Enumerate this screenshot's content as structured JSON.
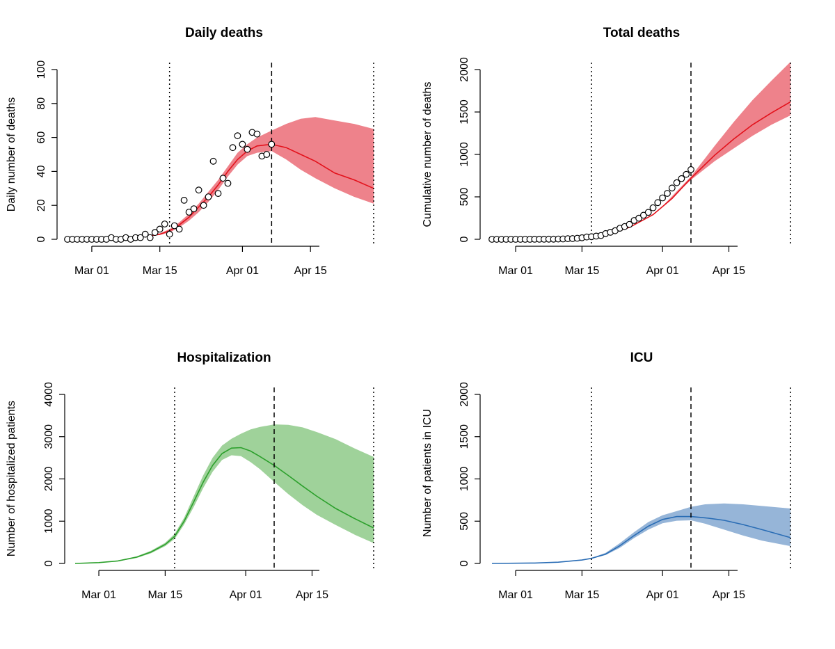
{
  "chart_data": [
    {
      "type": "line",
      "title": "Daily deaths",
      "ylabel": "Daily number of deaths",
      "xlabel": "",
      "ylim": [
        0,
        100
      ],
      "yticks": [
        0,
        20,
        40,
        60,
        80,
        100
      ],
      "xticks": [
        {
          "date": "2020-03-01",
          "label": "Mar 01"
        },
        {
          "date": "2020-03-15",
          "label": "Mar 15"
        },
        {
          "date": "2020-04-01",
          "label": "Apr 01"
        },
        {
          "date": "2020-04-15",
          "label": "Apr 15"
        }
      ],
      "xlim": [
        "2020-02-25",
        "2020-04-28"
      ],
      "vlines": [
        {
          "date": "2020-03-17",
          "style": "dotted"
        },
        {
          "date": "2020-04-07",
          "style": "dashed"
        },
        {
          "date": "2020-04-28",
          "style": "dotted"
        }
      ],
      "colors": {
        "line": "#e3111b",
        "band": "#ee828b"
      },
      "series": [
        {
          "kind": "observed",
          "x": [
            "2020-02-25",
            "2020-02-26",
            "2020-02-27",
            "2020-02-28",
            "2020-02-29",
            "2020-03-01",
            "2020-03-02",
            "2020-03-03",
            "2020-03-04",
            "2020-03-05",
            "2020-03-06",
            "2020-03-07",
            "2020-03-08",
            "2020-03-09",
            "2020-03-10",
            "2020-03-11",
            "2020-03-12",
            "2020-03-13",
            "2020-03-14",
            "2020-03-15",
            "2020-03-16",
            "2020-03-17",
            "2020-03-18",
            "2020-03-19",
            "2020-03-20",
            "2020-03-21",
            "2020-03-22",
            "2020-03-23",
            "2020-03-24",
            "2020-03-25",
            "2020-03-26",
            "2020-03-27",
            "2020-03-28",
            "2020-03-29",
            "2020-03-30",
            "2020-03-31",
            "2020-04-01",
            "2020-04-02",
            "2020-04-03",
            "2020-04-04",
            "2020-04-05",
            "2020-04-06",
            "2020-04-07"
          ],
          "y": [
            0,
            0,
            0,
            0,
            0,
            0,
            0,
            0,
            0,
            1,
            0,
            0,
            1,
            0,
            1,
            1,
            3,
            1,
            4,
            6,
            9,
            3,
            8,
            6,
            23,
            16,
            18,
            29,
            20,
            25,
            46,
            27,
            36,
            33,
            54,
            61,
            56,
            53,
            63,
            62,
            49,
            50,
            56
          ]
        },
        {
          "kind": "fitted",
          "x": [
            "2020-02-25",
            "2020-03-01",
            "2020-03-05",
            "2020-03-10",
            "2020-03-13",
            "2020-03-15",
            "2020-03-17",
            "2020-03-19",
            "2020-03-21",
            "2020-03-23",
            "2020-03-25",
            "2020-03-27",
            "2020-03-29",
            "2020-03-31",
            "2020-04-02",
            "2020-04-04",
            "2020-04-07",
            "2020-04-10",
            "2020-04-13",
            "2020-04-16",
            "2020-04-20",
            "2020-04-24",
            "2020-04-28"
          ],
          "y": [
            0,
            0,
            0.2,
            1,
            2,
            3,
            5,
            8.5,
            13,
            19,
            25,
            32,
            40,
            47,
            52,
            55,
            56,
            54,
            50,
            46,
            39,
            35,
            30
          ]
        },
        {
          "kind": "band_upper",
          "x": [
            "2020-03-10",
            "2020-03-15",
            "2020-03-17",
            "2020-03-19",
            "2020-03-21",
            "2020-03-23",
            "2020-03-25",
            "2020-03-27",
            "2020-03-29",
            "2020-03-31",
            "2020-04-02",
            "2020-04-04",
            "2020-04-07",
            "2020-04-10",
            "2020-04-13",
            "2020-04-16",
            "2020-04-20",
            "2020-04-24",
            "2020-04-28"
          ],
          "y": [
            1,
            3.5,
            6,
            10,
            15,
            21,
            28,
            35,
            43,
            51,
            56,
            60,
            64,
            68,
            71,
            72,
            70,
            68,
            65
          ]
        },
        {
          "kind": "band_lower",
          "x": [
            "2020-03-10",
            "2020-03-15",
            "2020-03-17",
            "2020-03-19",
            "2020-03-21",
            "2020-03-23",
            "2020-03-25",
            "2020-03-27",
            "2020-03-29",
            "2020-03-31",
            "2020-04-02",
            "2020-04-04",
            "2020-04-07",
            "2020-04-10",
            "2020-04-13",
            "2020-04-16",
            "2020-04-20",
            "2020-04-24",
            "2020-04-28"
          ],
          "y": [
            1,
            2.5,
            4,
            7,
            11,
            16,
            22,
            29,
            37,
            44,
            49,
            51,
            52,
            47,
            41,
            36,
            30,
            25,
            21
          ]
        }
      ]
    },
    {
      "type": "line",
      "title": "Total deaths",
      "ylabel": "Cumulative number of deaths",
      "xlabel": "",
      "ylim": [
        0,
        2000
      ],
      "yticks": [
        0,
        500,
        1000,
        1500,
        2000
      ],
      "xticks": [
        {
          "date": "2020-03-01",
          "label": "Mar 01"
        },
        {
          "date": "2020-03-15",
          "label": "Mar 15"
        },
        {
          "date": "2020-04-01",
          "label": "Apr 01"
        },
        {
          "date": "2020-04-15",
          "label": "Apr 15"
        }
      ],
      "xlim": [
        "2020-02-25",
        "2020-04-28"
      ],
      "vlines": [
        {
          "date": "2020-03-17",
          "style": "dotted"
        },
        {
          "date": "2020-04-07",
          "style": "dashed"
        },
        {
          "date": "2020-04-28",
          "style": "dotted"
        }
      ],
      "colors": {
        "line": "#e3111b",
        "band": "#ee828b"
      },
      "series": [
        {
          "kind": "observed",
          "x": [
            "2020-02-25",
            "2020-02-26",
            "2020-02-27",
            "2020-02-28",
            "2020-02-29",
            "2020-03-01",
            "2020-03-02",
            "2020-03-03",
            "2020-03-04",
            "2020-03-05",
            "2020-03-06",
            "2020-03-07",
            "2020-03-08",
            "2020-03-09",
            "2020-03-10",
            "2020-03-11",
            "2020-03-12",
            "2020-03-13",
            "2020-03-14",
            "2020-03-15",
            "2020-03-16",
            "2020-03-17",
            "2020-03-18",
            "2020-03-19",
            "2020-03-20",
            "2020-03-21",
            "2020-03-22",
            "2020-03-23",
            "2020-03-24",
            "2020-03-25",
            "2020-03-26",
            "2020-03-27",
            "2020-03-28",
            "2020-03-29",
            "2020-03-30",
            "2020-03-31",
            "2020-04-01",
            "2020-04-02",
            "2020-04-03",
            "2020-04-04",
            "2020-04-05",
            "2020-04-06",
            "2020-04-07"
          ],
          "y": [
            0,
            0,
            0,
            0,
            0,
            0,
            0,
            0,
            0,
            1,
            1,
            1,
            2,
            2,
            3,
            4,
            7,
            8,
            12,
            18,
            27,
            30,
            38,
            44,
            67,
            83,
            101,
            130,
            150,
            175,
            221,
            248,
            284,
            317,
            371,
            432,
            488,
            541,
            604,
            666,
            715,
            765,
            821
          ]
        },
        {
          "kind": "fitted",
          "x": [
            "2020-02-25",
            "2020-03-05",
            "2020-03-15",
            "2020-03-20",
            "2020-03-25",
            "2020-03-30",
            "2020-04-03",
            "2020-04-07",
            "2020-04-12",
            "2020-04-16",
            "2020-04-20",
            "2020-04-24",
            "2020-04-28"
          ],
          "y": [
            0,
            2,
            15,
            55,
            140,
            290,
            480,
            720,
            990,
            1180,
            1350,
            1490,
            1620
          ]
        },
        {
          "kind": "band_upper",
          "x": [
            "2020-04-01",
            "2020-04-07",
            "2020-04-12",
            "2020-04-16",
            "2020-04-20",
            "2020-04-24",
            "2020-04-28"
          ],
          "y": [
            390,
            740,
            1100,
            1380,
            1640,
            1870,
            2090
          ]
        },
        {
          "kind": "band_lower",
          "x": [
            "2020-04-01",
            "2020-04-07",
            "2020-04-12",
            "2020-04-16",
            "2020-04-20",
            "2020-04-24",
            "2020-04-28"
          ],
          "y": [
            380,
            700,
            920,
            1070,
            1220,
            1350,
            1460
          ]
        }
      ]
    },
    {
      "type": "line",
      "title": "Hospitalization",
      "ylabel": "Number of hospitalized patients",
      "xlabel": "",
      "ylim": [
        0,
        4000
      ],
      "yticks": [
        0,
        1000,
        2000,
        3000,
        4000
      ],
      "xticks": [
        {
          "date": "2020-03-01",
          "label": "Mar 01"
        },
        {
          "date": "2020-03-15",
          "label": "Mar 15"
        },
        {
          "date": "2020-04-01",
          "label": "Apr 01"
        },
        {
          "date": "2020-04-15",
          "label": "Apr 15"
        }
      ],
      "xlim": [
        "2020-02-25",
        "2020-04-28"
      ],
      "vlines": [
        {
          "date": "2020-03-17",
          "style": "dotted"
        },
        {
          "date": "2020-04-07",
          "style": "dashed"
        },
        {
          "date": "2020-04-28",
          "style": "dotted"
        }
      ],
      "colors": {
        "line": "#2ca02c",
        "band": "#9fd29a"
      },
      "series": [
        {
          "kind": "fitted",
          "x": [
            "2020-02-25",
            "2020-03-01",
            "2020-03-05",
            "2020-03-09",
            "2020-03-12",
            "2020-03-15",
            "2020-03-17",
            "2020-03-19",
            "2020-03-21",
            "2020-03-23",
            "2020-03-25",
            "2020-03-27",
            "2020-03-29",
            "2020-03-31",
            "2020-04-02",
            "2020-04-04",
            "2020-04-07",
            "2020-04-10",
            "2020-04-13",
            "2020-04-16",
            "2020-04-20",
            "2020-04-24",
            "2020-04-28"
          ],
          "y": [
            0,
            20,
            60,
            150,
            270,
            450,
            640,
            1000,
            1450,
            1920,
            2320,
            2600,
            2730,
            2740,
            2660,
            2530,
            2320,
            2080,
            1830,
            1590,
            1300,
            1060,
            840
          ]
        },
        {
          "kind": "band_upper",
          "x": [
            "2020-03-05",
            "2020-03-09",
            "2020-03-12",
            "2020-03-15",
            "2020-03-17",
            "2020-03-19",
            "2020-03-21",
            "2020-03-23",
            "2020-03-25",
            "2020-03-27",
            "2020-03-29",
            "2020-03-31",
            "2020-04-02",
            "2020-04-04",
            "2020-04-07",
            "2020-04-10",
            "2020-04-13",
            "2020-04-16",
            "2020-04-20",
            "2020-04-24",
            "2020-04-28"
          ],
          "y": [
            70,
            170,
            300,
            490,
            700,
            1080,
            1580,
            2080,
            2500,
            2790,
            2950,
            3070,
            3170,
            3230,
            3290,
            3280,
            3220,
            3110,
            2940,
            2720,
            2520
          ]
        },
        {
          "kind": "band_lower",
          "x": [
            "2020-03-05",
            "2020-03-09",
            "2020-03-12",
            "2020-03-15",
            "2020-03-17",
            "2020-03-19",
            "2020-03-21",
            "2020-03-23",
            "2020-03-25",
            "2020-03-27",
            "2020-03-29",
            "2020-03-31",
            "2020-04-02",
            "2020-04-04",
            "2020-04-07",
            "2020-04-10",
            "2020-04-13",
            "2020-04-16",
            "2020-04-20",
            "2020-04-24",
            "2020-04-28"
          ],
          "y": [
            50,
            130,
            240,
            410,
            580,
            920,
            1330,
            1780,
            2170,
            2450,
            2560,
            2540,
            2400,
            2230,
            1930,
            1640,
            1380,
            1150,
            910,
            680,
            480
          ]
        }
      ]
    },
    {
      "type": "line",
      "title": "ICU",
      "ylabel": "Number of patients in ICU",
      "xlabel": "",
      "ylim": [
        0,
        2000
      ],
      "yticks": [
        0,
        500,
        1000,
        1500,
        2000
      ],
      "xticks": [
        {
          "date": "2020-03-01",
          "label": "Mar 01"
        },
        {
          "date": "2020-03-15",
          "label": "Mar 15"
        },
        {
          "date": "2020-04-01",
          "label": "Apr 01"
        },
        {
          "date": "2020-04-15",
          "label": "Apr 15"
        }
      ],
      "xlim": [
        "2020-02-25",
        "2020-04-28"
      ],
      "vlines": [
        {
          "date": "2020-03-17",
          "style": "dotted"
        },
        {
          "date": "2020-04-07",
          "style": "dashed"
        },
        {
          "date": "2020-04-28",
          "style": "dotted"
        }
      ],
      "colors": {
        "line": "#2a6db5",
        "band": "#96b5d8"
      },
      "series": [
        {
          "kind": "fitted",
          "x": [
            "2020-02-25",
            "2020-03-05",
            "2020-03-10",
            "2020-03-15",
            "2020-03-17",
            "2020-03-20",
            "2020-03-23",
            "2020-03-26",
            "2020-03-29",
            "2020-04-01",
            "2020-04-04",
            "2020-04-07",
            "2020-04-10",
            "2020-04-14",
            "2020-04-18",
            "2020-04-22",
            "2020-04-28"
          ],
          "y": [
            0,
            5,
            15,
            40,
            60,
            110,
            210,
            330,
            440,
            520,
            555,
            555,
            540,
            510,
            460,
            400,
            305
          ]
        },
        {
          "kind": "band_upper",
          "x": [
            "2020-03-15",
            "2020-03-17",
            "2020-03-20",
            "2020-03-23",
            "2020-03-26",
            "2020-03-29",
            "2020-04-01",
            "2020-04-04",
            "2020-04-07",
            "2020-04-10",
            "2020-04-14",
            "2020-04-18",
            "2020-04-22",
            "2020-04-28"
          ],
          "y": [
            42,
            65,
            125,
            240,
            370,
            490,
            570,
            620,
            670,
            700,
            710,
            700,
            680,
            650
          ]
        },
        {
          "kind": "band_lower",
          "x": [
            "2020-03-15",
            "2020-03-17",
            "2020-03-20",
            "2020-03-23",
            "2020-03-26",
            "2020-03-29",
            "2020-04-01",
            "2020-04-04",
            "2020-04-07",
            "2020-04-10",
            "2020-04-14",
            "2020-04-18",
            "2020-04-22",
            "2020-04-28"
          ],
          "y": [
            38,
            55,
            100,
            185,
            300,
            400,
            475,
            505,
            510,
            470,
            400,
            330,
            270,
            205
          ]
        }
      ]
    }
  ]
}
